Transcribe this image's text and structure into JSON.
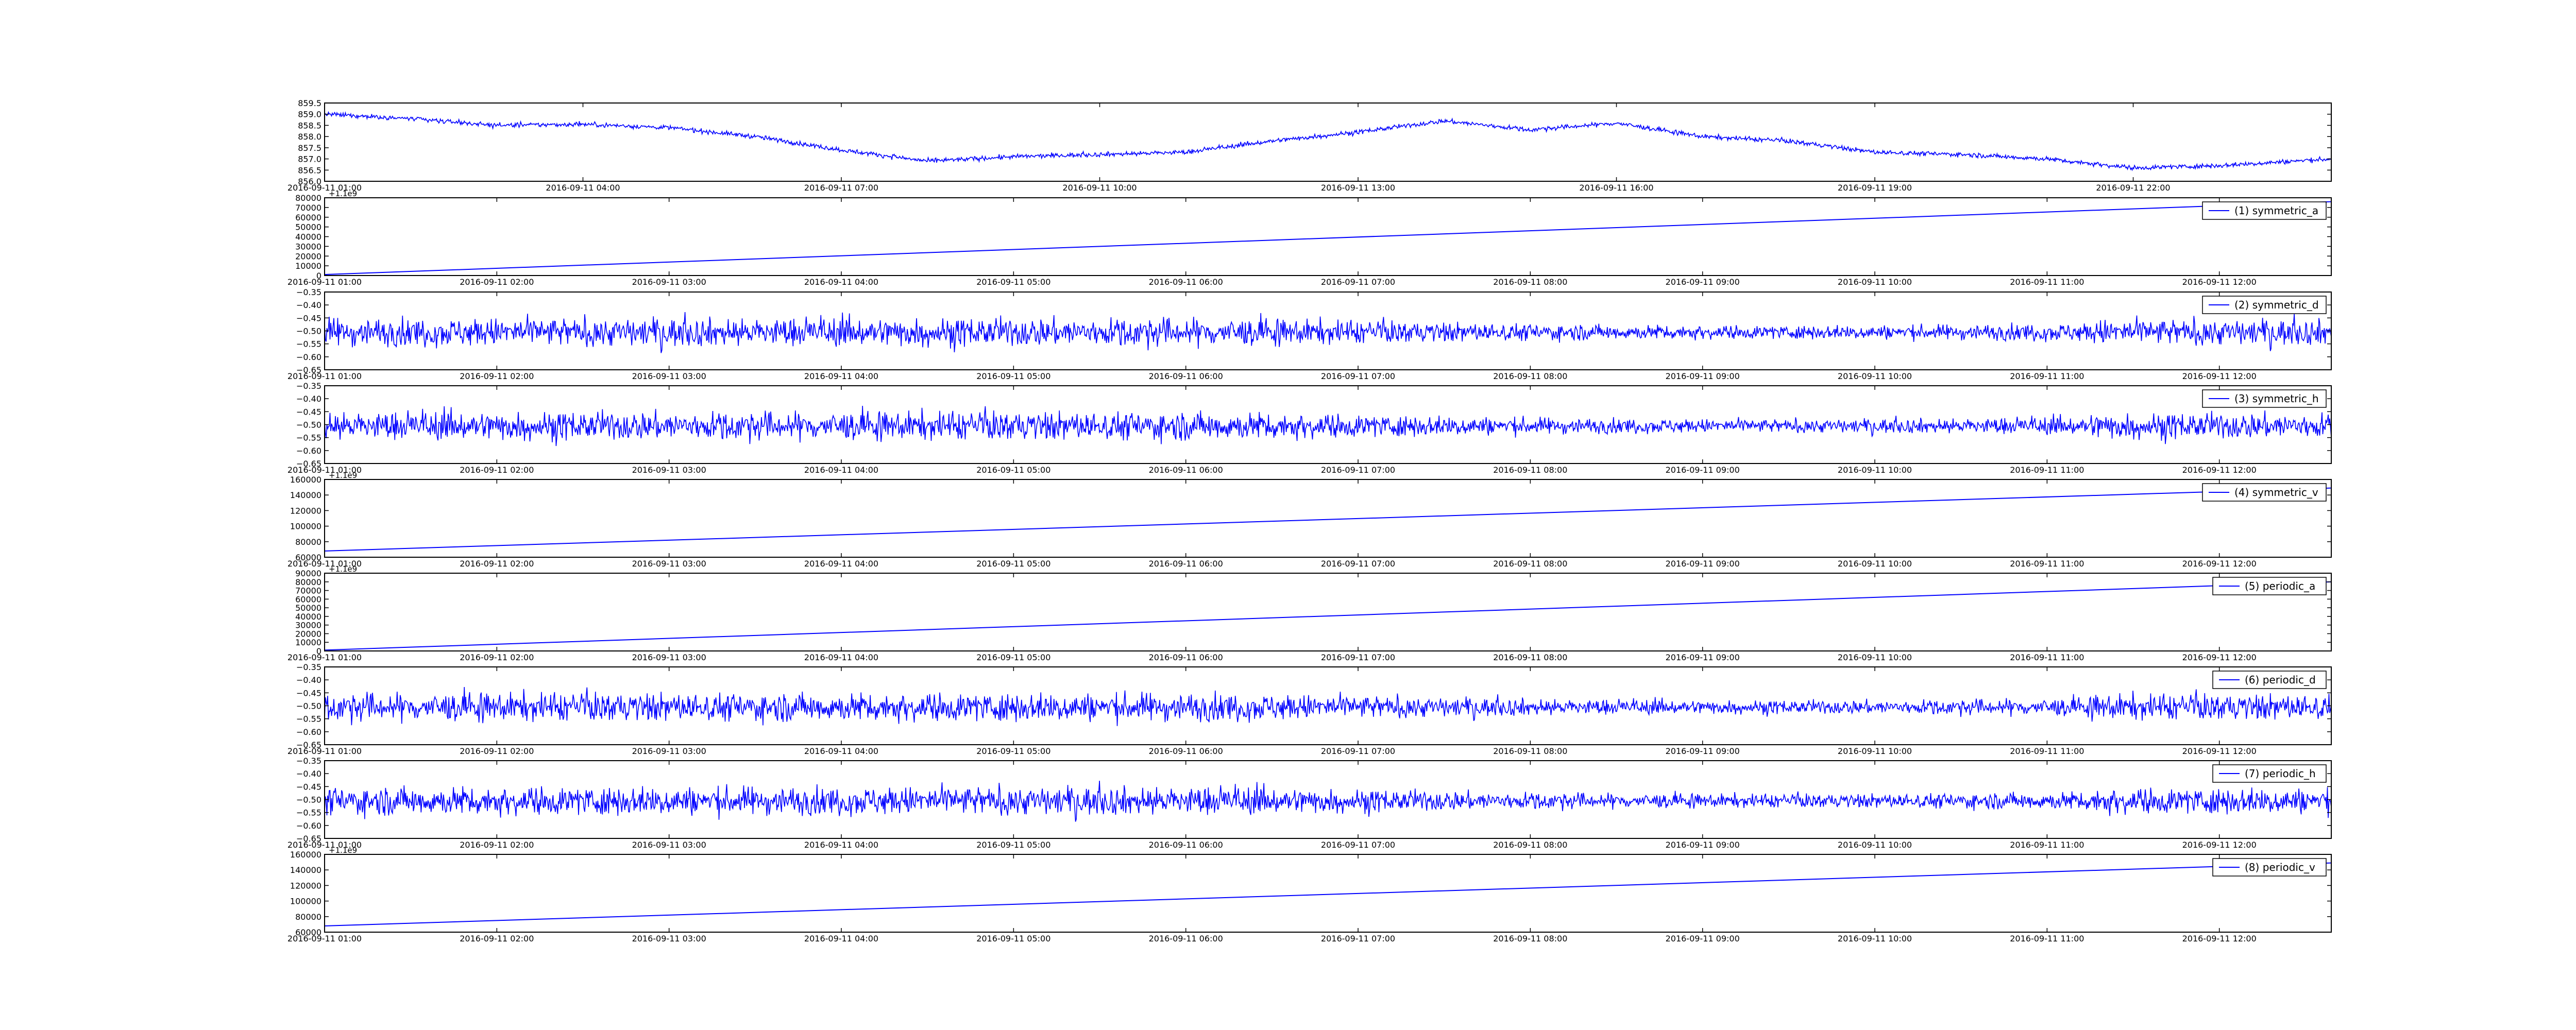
{
  "figure": {
    "background": "#ffffff",
    "line_color": "#0000ff",
    "frame_color": "#000000"
  },
  "chart_data": [
    {
      "type": "line",
      "id": "ref",
      "legend": "",
      "offset_label": "",
      "x_tick_labels": [
        "2016-09-11 01:00",
        "2016-09-11 04:00",
        "2016-09-11 07:00",
        "2016-09-11 10:00",
        "2016-09-11 13:00",
        "2016-09-11 16:00",
        "2016-09-11 19:00",
        "2016-09-11 22:00"
      ],
      "x_range_hours": [
        1.0,
        24.3
      ],
      "y_tick_labels": [
        "856.0",
        "856.5",
        "857.0",
        "857.5",
        "858.0",
        "858.5",
        "859.0",
        "859.5"
      ],
      "ylim": [
        856.0,
        859.5
      ],
      "signal": "noisy",
      "noise_amplitude": 0.12,
      "series": [
        {
          "x": [
            1.0,
            2.0,
            3.0,
            4.0,
            5.0,
            6.0,
            7.0,
            8.0,
            9.0,
            10.0,
            11.0,
            12.0,
            13.0,
            14.0,
            15.0,
            16.0,
            17.0,
            18.0,
            19.0,
            20.0,
            21.0,
            22.0,
            23.0,
            24.3
          ],
          "y": [
            859.0,
            858.8,
            858.5,
            858.55,
            858.4,
            858.0,
            857.4,
            856.9,
            857.1,
            857.2,
            857.3,
            857.8,
            858.2,
            858.7,
            858.3,
            858.6,
            858.0,
            857.8,
            857.3,
            857.2,
            857.0,
            856.6,
            856.7,
            857.0
          ]
        }
      ]
    },
    {
      "type": "line",
      "id": "s1",
      "legend": "(1) symmetric_a",
      "offset_label": "+1.1e9",
      "x_tick_labels": [
        "2016-09-11 01:00",
        "2016-09-11 02:00",
        "2016-09-11 03:00",
        "2016-09-11 04:00",
        "2016-09-11 05:00",
        "2016-09-11 06:00",
        "2016-09-11 07:00",
        "2016-09-11 08:00",
        "2016-09-11 09:00",
        "2016-09-11 10:00",
        "2016-09-11 11:00",
        "2016-09-11 12:00"
      ],
      "x_range_hours": [
        1.0,
        12.65
      ],
      "y_tick_labels": [
        "0",
        "10000",
        "20000",
        "30000",
        "40000",
        "50000",
        "60000",
        "70000",
        "80000"
      ],
      "ylim": [
        0,
        80000
      ],
      "signal": "linear",
      "series": [
        {
          "x": [
            1.0,
            12.65
          ],
          "y": [
            1000,
            76000
          ]
        }
      ]
    },
    {
      "type": "line",
      "id": "s2",
      "legend": "(2) symmetric_d",
      "offset_label": "",
      "x_tick_labels": [
        "2016-09-11 01:00",
        "2016-09-11 02:00",
        "2016-09-11 03:00",
        "2016-09-11 04:00",
        "2016-09-11 05:00",
        "2016-09-11 06:00",
        "2016-09-11 07:00",
        "2016-09-11 08:00",
        "2016-09-11 09:00",
        "2016-09-11 10:00",
        "2016-09-11 11:00",
        "2016-09-11 12:00"
      ],
      "x_range_hours": [
        1.0,
        12.65
      ],
      "y_tick_labels": [
        "−0.65",
        "−0.60",
        "−0.55",
        "−0.50",
        "−0.45",
        "−0.40",
        "−0.35"
      ],
      "ylim": [
        -0.65,
        -0.35
      ],
      "signal": "noisy",
      "noise_amplitude": 0.06,
      "series": [
        {
          "x": [
            1.0,
            12.65
          ],
          "y": [
            -0.505,
            -0.505
          ]
        }
      ]
    },
    {
      "type": "line",
      "id": "s3",
      "legend": "(3) symmetric_h",
      "offset_label": "",
      "x_tick_labels": [
        "2016-09-11 01:00",
        "2016-09-11 02:00",
        "2016-09-11 03:00",
        "2016-09-11 04:00",
        "2016-09-11 05:00",
        "2016-09-11 06:00",
        "2016-09-11 07:00",
        "2016-09-11 08:00",
        "2016-09-11 09:00",
        "2016-09-11 10:00",
        "2016-09-11 11:00",
        "2016-09-11 12:00"
      ],
      "x_range_hours": [
        1.0,
        12.65
      ],
      "y_tick_labels": [
        "−0.65",
        "−0.60",
        "−0.55",
        "−0.50",
        "−0.45",
        "−0.40",
        "−0.35"
      ],
      "ylim": [
        -0.65,
        -0.35
      ],
      "signal": "noisy",
      "noise_amplitude": 0.06,
      "series": [
        {
          "x": [
            1.0,
            12.65
          ],
          "y": [
            -0.505,
            -0.505
          ]
        }
      ]
    },
    {
      "type": "line",
      "id": "s4",
      "legend": "(4) symmetric_v",
      "offset_label": "+1.1e9",
      "x_tick_labels": [
        "2016-09-11 01:00",
        "2016-09-11 02:00",
        "2016-09-11 03:00",
        "2016-09-11 04:00",
        "2016-09-11 05:00",
        "2016-09-11 06:00",
        "2016-09-11 07:00",
        "2016-09-11 08:00",
        "2016-09-11 09:00",
        "2016-09-11 10:00",
        "2016-09-11 11:00",
        "2016-09-11 12:00"
      ],
      "x_range_hours": [
        1.0,
        12.65
      ],
      "y_tick_labels": [
        "60000",
        "80000",
        "100000",
        "120000",
        "140000",
        "160000"
      ],
      "ylim": [
        60000,
        160000
      ],
      "signal": "linear",
      "series": [
        {
          "x": [
            1.0,
            12.65
          ],
          "y": [
            68000,
            149000
          ]
        }
      ]
    },
    {
      "type": "line",
      "id": "s5",
      "legend": "(5) periodic_a",
      "offset_label": "+1.1e9",
      "x_tick_labels": [
        "2016-09-11 01:00",
        "2016-09-11 02:00",
        "2016-09-11 03:00",
        "2016-09-11 04:00",
        "2016-09-11 05:00",
        "2016-09-11 06:00",
        "2016-09-11 07:00",
        "2016-09-11 08:00",
        "2016-09-11 09:00",
        "2016-09-11 10:00",
        "2016-09-11 11:00",
        "2016-09-11 12:00"
      ],
      "x_range_hours": [
        1.0,
        12.65
      ],
      "y_tick_labels": [
        "0",
        "10000",
        "20000",
        "30000",
        "40000",
        "50000",
        "60000",
        "70000",
        "80000",
        "90000"
      ],
      "ylim": [
        0,
        90000
      ],
      "signal": "linear",
      "series": [
        {
          "x": [
            1.0,
            12.65
          ],
          "y": [
            1000,
            80000
          ]
        }
      ]
    },
    {
      "type": "line",
      "id": "s6",
      "legend": "(6) periodic_d",
      "offset_label": "",
      "x_tick_labels": [
        "2016-09-11 01:00",
        "2016-09-11 02:00",
        "2016-09-11 03:00",
        "2016-09-11 04:00",
        "2016-09-11 05:00",
        "2016-09-11 06:00",
        "2016-09-11 07:00",
        "2016-09-11 08:00",
        "2016-09-11 09:00",
        "2016-09-11 10:00",
        "2016-09-11 11:00",
        "2016-09-11 12:00"
      ],
      "x_range_hours": [
        1.0,
        12.65
      ],
      "y_tick_labels": [
        "−0.65",
        "−0.60",
        "−0.55",
        "−0.50",
        "−0.45",
        "−0.40",
        "−0.35"
      ],
      "ylim": [
        -0.65,
        -0.35
      ],
      "signal": "noisy",
      "noise_amplitude": 0.06,
      "series": [
        {
          "x": [
            1.0,
            12.65
          ],
          "y": [
            -0.505,
            -0.505
          ]
        }
      ]
    },
    {
      "type": "line",
      "id": "s7",
      "legend": "(7) periodic_h",
      "offset_label": "",
      "x_tick_labels": [
        "2016-09-11 01:00",
        "2016-09-11 02:00",
        "2016-09-11 03:00",
        "2016-09-11 04:00",
        "2016-09-11 05:00",
        "2016-09-11 06:00",
        "2016-09-11 07:00",
        "2016-09-11 08:00",
        "2016-09-11 09:00",
        "2016-09-11 10:00",
        "2016-09-11 11:00",
        "2016-09-11 12:00"
      ],
      "x_range_hours": [
        1.0,
        12.65
      ],
      "y_tick_labels": [
        "−0.65",
        "−0.60",
        "−0.55",
        "−0.50",
        "−0.45",
        "−0.40",
        "−0.35"
      ],
      "ylim": [
        -0.65,
        -0.35
      ],
      "signal": "noisy",
      "noise_amplitude": 0.06,
      "series": [
        {
          "x": [
            1.0,
            12.65
          ],
          "y": [
            -0.505,
            -0.505
          ]
        }
      ]
    },
    {
      "type": "line",
      "id": "s8",
      "legend": "(8) periodic_v",
      "offset_label": "+1.1e9",
      "x_tick_labels": [
        "2016-09-11 01:00",
        "2016-09-11 02:00",
        "2016-09-11 03:00",
        "2016-09-11 04:00",
        "2016-09-11 05:00",
        "2016-09-11 06:00",
        "2016-09-11 07:00",
        "2016-09-11 08:00",
        "2016-09-11 09:00",
        "2016-09-11 10:00",
        "2016-09-11 11:00",
        "2016-09-11 12:00"
      ],
      "x_range_hours": [
        1.0,
        12.65
      ],
      "y_tick_labels": [
        "60000",
        "80000",
        "100000",
        "120000",
        "140000",
        "160000"
      ],
      "ylim": [
        60000,
        160000
      ],
      "signal": "linear",
      "series": [
        {
          "x": [
            1.0,
            12.65
          ],
          "y": [
            68000,
            149000
          ]
        }
      ]
    }
  ]
}
